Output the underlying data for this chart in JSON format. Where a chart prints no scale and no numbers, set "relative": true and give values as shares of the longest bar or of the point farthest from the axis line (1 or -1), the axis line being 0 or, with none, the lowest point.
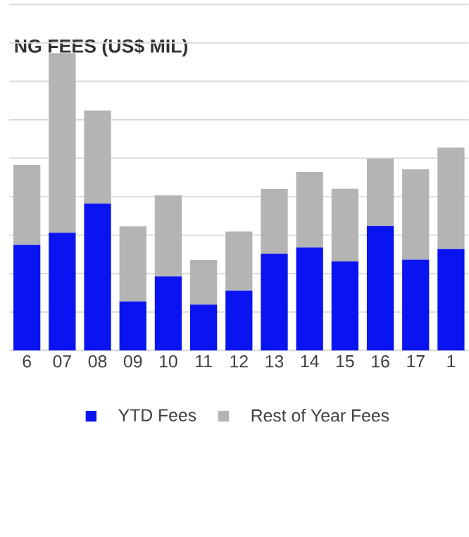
{
  "chart_data": {
    "type": "bar",
    "title": "NG FEES (US$ MIL)",
    "stacked": true,
    "relative": true,
    "grid": "y",
    "legend": "bottom",
    "categories": [
      "6",
      "07",
      "08",
      "09",
      "10",
      "11",
      "12",
      "13",
      "14",
      "15",
      "16",
      "17",
      "1"
    ],
    "series": [
      {
        "name": "YTD Fees",
        "color": "#0a14f0",
        "values": [
          0.355,
          0.396,
          0.494,
          0.165,
          0.249,
          0.154,
          0.201,
          0.325,
          0.346,
          0.299,
          0.418,
          0.305,
          0.341
        ]
      },
      {
        "name": "Rest of Year Fees",
        "color": "#b4b4b4",
        "values": [
          0.269,
          0.604,
          0.313,
          0.252,
          0.272,
          0.15,
          0.199,
          0.218,
          0.254,
          0.245,
          0.227,
          0.304,
          0.341
        ]
      }
    ]
  }
}
